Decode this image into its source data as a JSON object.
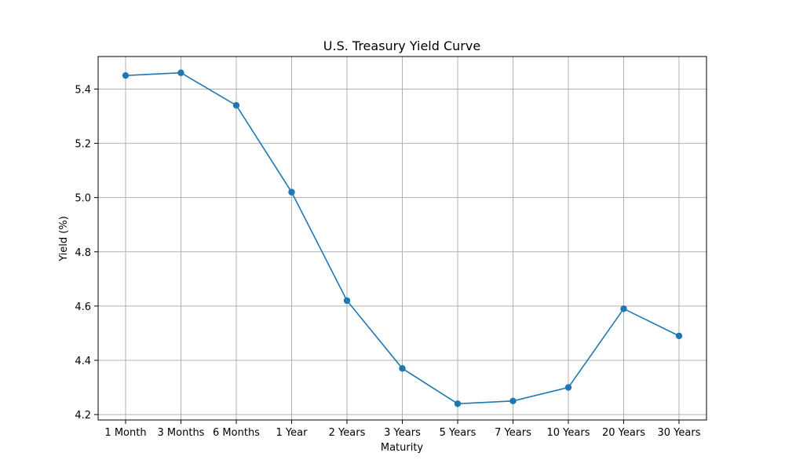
{
  "chart_data": {
    "type": "line",
    "title": "U.S. Treasury Yield Curve",
    "xlabel": "Maturity",
    "ylabel": "Yield (%)",
    "categories": [
      "1 Month",
      "3 Months",
      "6 Months",
      "1 Year",
      "2 Years",
      "3 Years",
      "5 Years",
      "7 Years",
      "10 Years",
      "20 Years",
      "30 Years"
    ],
    "series": [
      {
        "values": [
          5.45,
          5.46,
          5.34,
          5.02,
          4.62,
          4.37,
          4.24,
          4.25,
          4.3,
          4.59,
          4.49
        ],
        "color": "#1f77b4",
        "marker": "circle"
      }
    ],
    "ylim": [
      4.18,
      5.52
    ],
    "yticks": [
      4.2,
      4.4,
      4.6,
      4.8,
      5.0,
      5.2,
      5.4
    ],
    "ytick_labels": [
      "4.2",
      "4.4",
      "4.6",
      "4.8",
      "5.0",
      "5.2",
      "5.4"
    ],
    "grid": true,
    "legend": "none"
  }
}
